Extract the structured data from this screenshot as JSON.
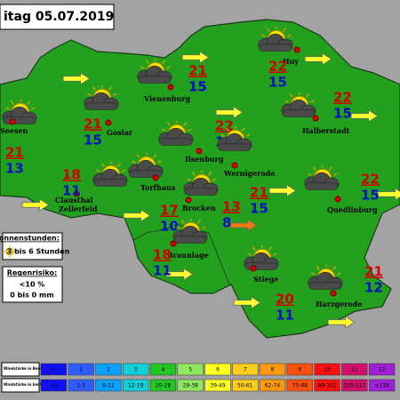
{
  "header": {
    "title": "itag 05.07.2019"
  },
  "locations": [
    {
      "name": "Seesen",
      "max": 21,
      "min": 13
    },
    {
      "name": "Goslar",
      "max": 21,
      "min": 15
    },
    {
      "name": "Vienenburg",
      "max": 21,
      "min": 15
    },
    {
      "name": "Huy",
      "max": 22,
      "min": 15
    },
    {
      "name": "Halberstadt",
      "max": 22,
      "min": 15
    },
    {
      "name": "Ilsenburg",
      "max": 22,
      "min": 15
    },
    {
      "name": "Wernigerode",
      "max": 21,
      "min": 15
    },
    {
      "name": "Clausthal Zellerfeld",
      "max": 18,
      "min": 11
    },
    {
      "name": "Torfhaus",
      "max": 17,
      "min": 10
    },
    {
      "name": "Brocken",
      "max": 13,
      "min": 8
    },
    {
      "name": "Braunlage",
      "max": 18,
      "min": 11
    },
    {
      "name": "Quedlinburg",
      "max": 22,
      "min": 15
    },
    {
      "name": "Stiege",
      "max": 20,
      "min": 11
    },
    {
      "name": "Harzgerode",
      "max": 21,
      "min": 12
    }
  ],
  "sunshine": {
    "title": "Sonnenstunden:",
    "text": "3 bis 6 Stunden"
  },
  "rain": {
    "title": "Regenrisiko:",
    "risk": "<10 %",
    "amount": "0 bis 0 mm"
  },
  "wind_scale": {
    "beaufort_label": "Windstärke in Beaufort",
    "kmh_label": "Windstärke in km/h",
    "beaufort": [
      "0",
      "1",
      "2",
      "3",
      "4",
      "5",
      "6",
      "7",
      "8",
      "9",
      "10",
      "11",
      "12"
    ],
    "kmh": [
      "<1",
      "1-5",
      "6-11",
      "12-19",
      "20-28",
      "29-38",
      "39-49",
      "50-61",
      "62-74",
      "75-88",
      "89-102",
      "103-117",
      ">118"
    ],
    "colors": [
      "#1010f0",
      "#2f5cff",
      "#0aa0ff",
      "#10d0d8",
      "#22c822",
      "#90e860",
      "#ffff20",
      "#ffcc20",
      "#ff9a10",
      "#ff5010",
      "#ff1010",
      "#d0106a",
      "#a020d8"
    ]
  }
}
